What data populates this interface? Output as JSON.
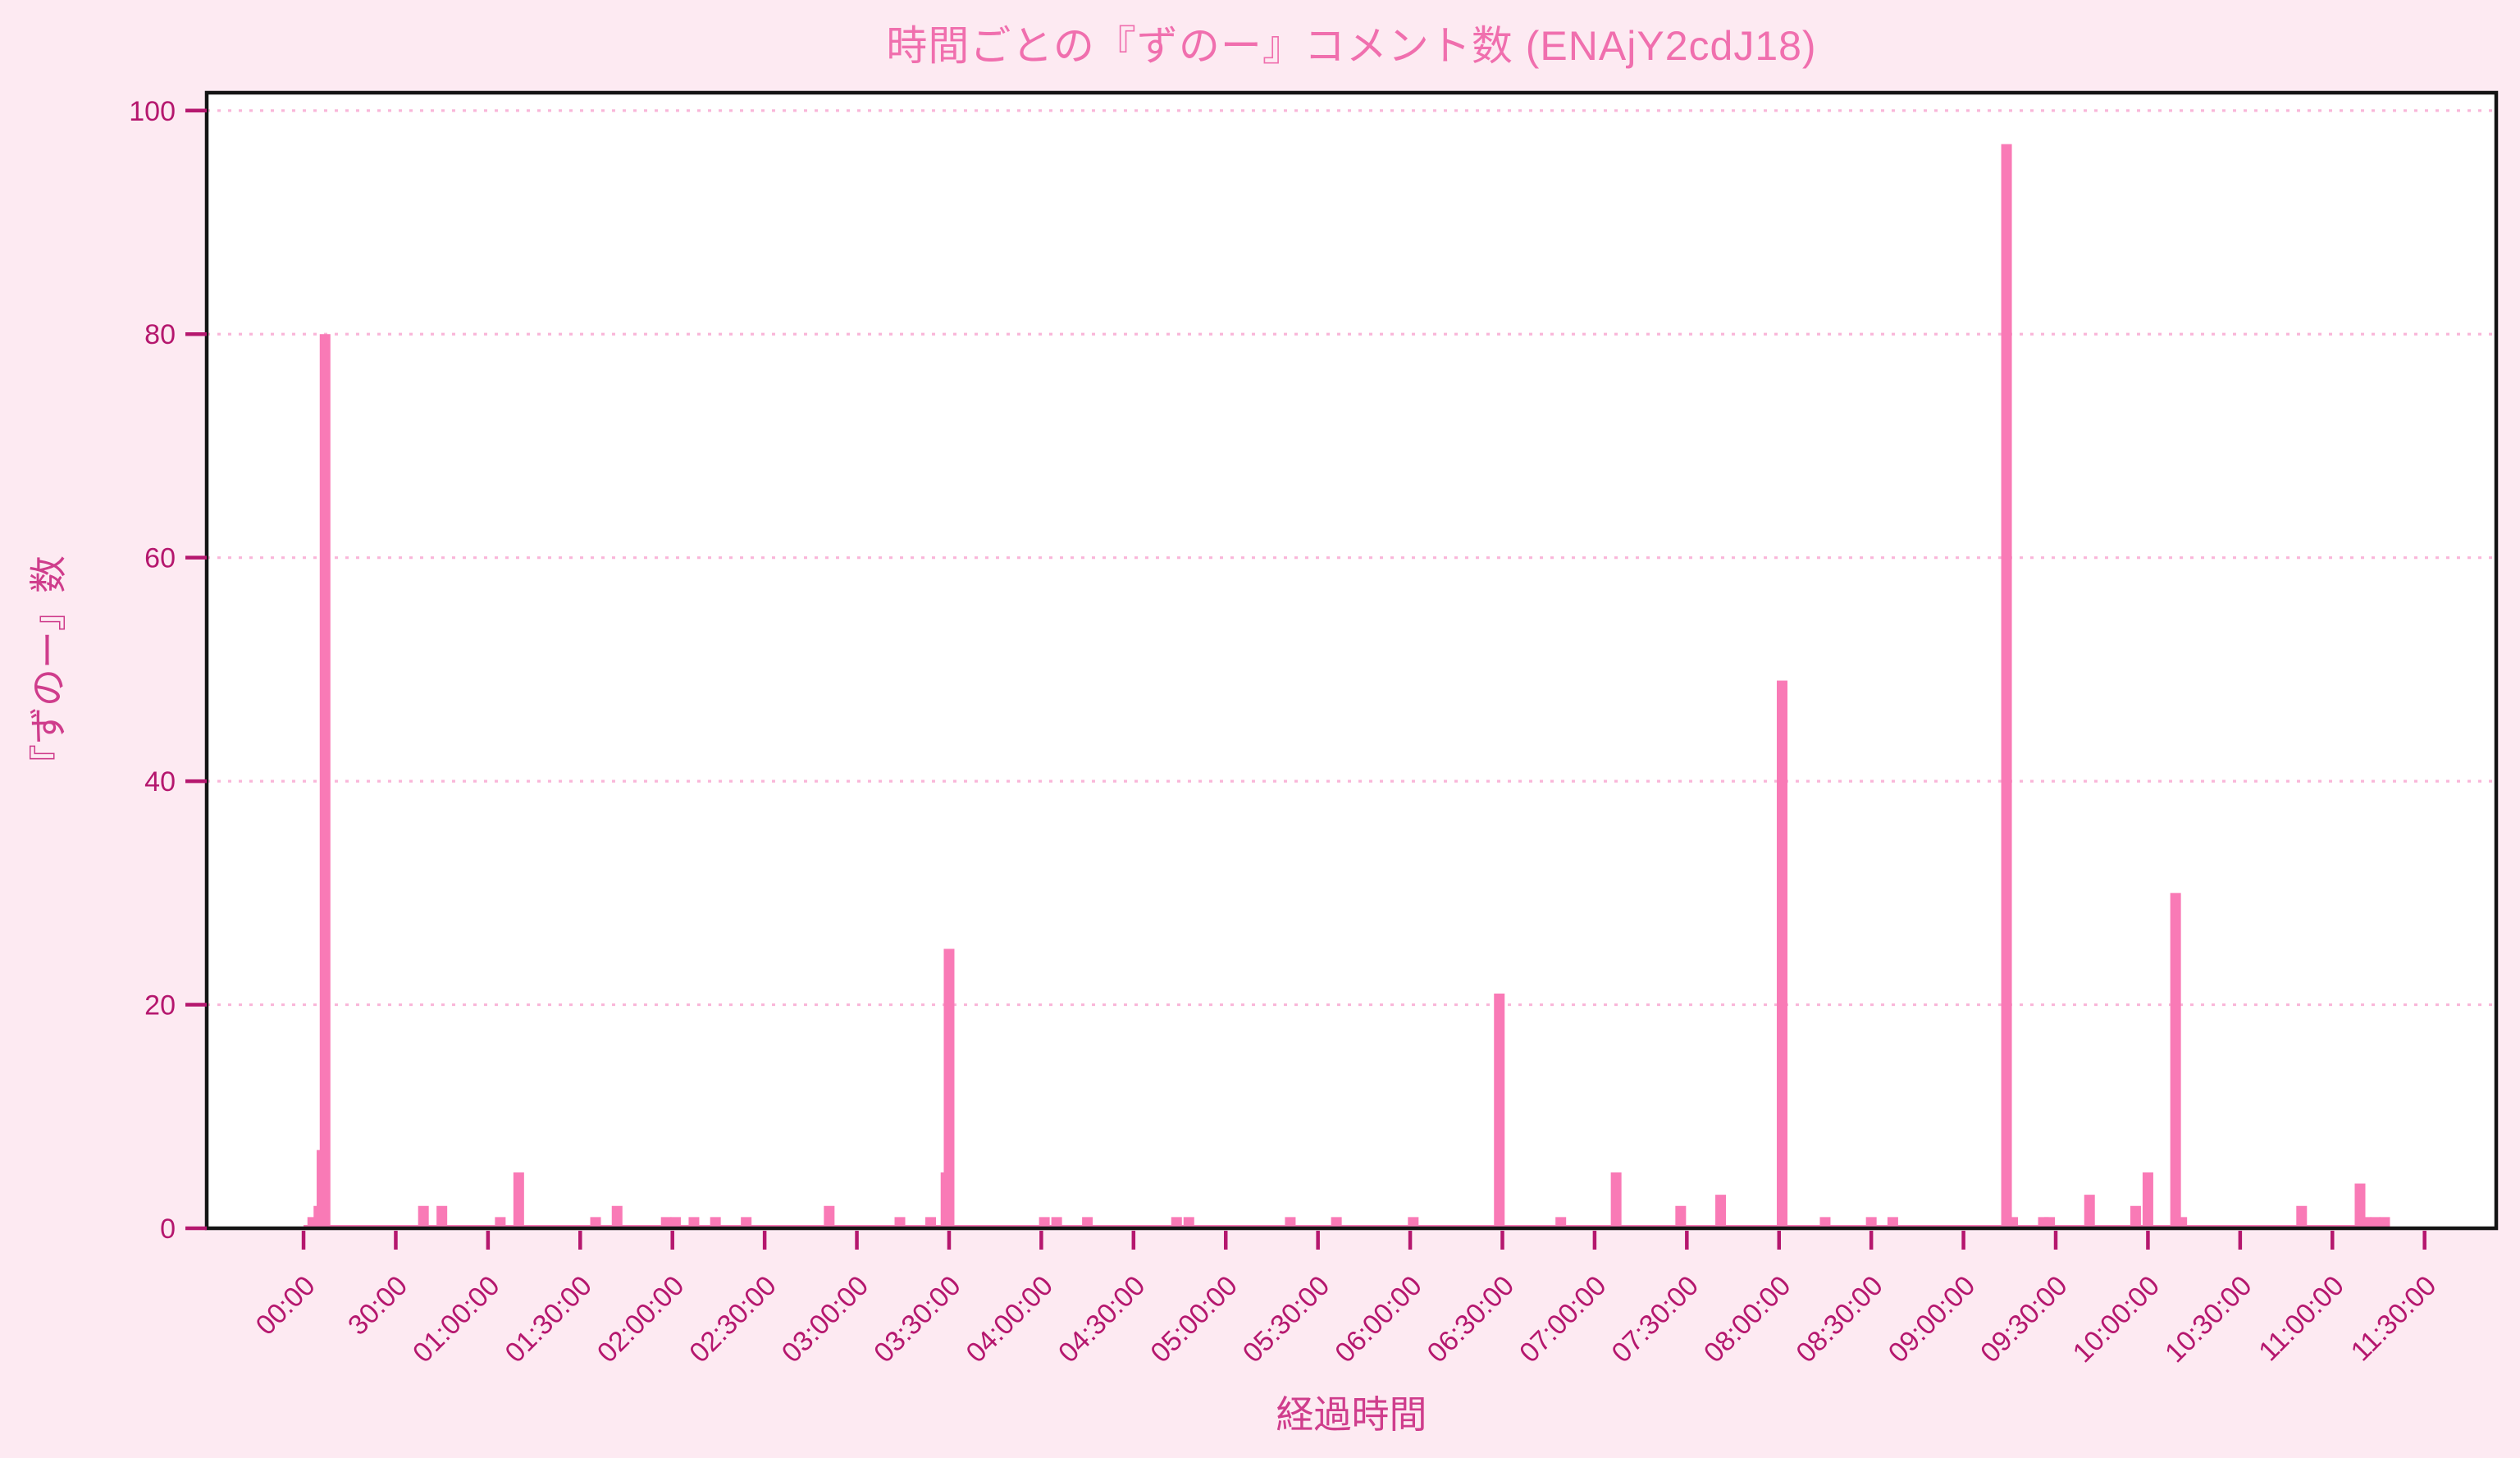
{
  "chart_data": {
    "type": "bar",
    "title": "時間ごとの『ずのー』コメント数 (ENAjY2cdJ18)",
    "xlabel": "経過時間",
    "ylabel": "『ずのー』数",
    "grid": "horizontal-dotted",
    "legend": "none",
    "x_unit": "minutes-elapsed",
    "xlim_minutes": [
      -31.5,
      713.3
    ],
    "ylim": [
      0,
      101.6
    ],
    "y_ticks": [
      0,
      20,
      40,
      60,
      80,
      100
    ],
    "x_ticks": [
      {
        "minute": 0,
        "label": "00:00"
      },
      {
        "minute": 30,
        "label": "30:00"
      },
      {
        "minute": 60,
        "label": "01:00:00"
      },
      {
        "minute": 90,
        "label": "01:30:00"
      },
      {
        "minute": 120,
        "label": "02:00:00"
      },
      {
        "minute": 150,
        "label": "02:30:00"
      },
      {
        "minute": 180,
        "label": "03:00:00"
      },
      {
        "minute": 210,
        "label": "03:30:00"
      },
      {
        "minute": 240,
        "label": "04:00:00"
      },
      {
        "minute": 270,
        "label": "04:30:00"
      },
      {
        "minute": 300,
        "label": "05:00:00"
      },
      {
        "minute": 330,
        "label": "05:30:00"
      },
      {
        "minute": 360,
        "label": "06:00:00"
      },
      {
        "minute": 390,
        "label": "06:30:00"
      },
      {
        "minute": 420,
        "label": "07:00:00"
      },
      {
        "minute": 450,
        "label": "07:30:00"
      },
      {
        "minute": 480,
        "label": "08:00:00"
      },
      {
        "minute": 510,
        "label": "08:30:00"
      },
      {
        "minute": 540,
        "label": "09:00:00"
      },
      {
        "minute": 570,
        "label": "09:30:00"
      },
      {
        "minute": 600,
        "label": "10:00:00"
      },
      {
        "minute": 630,
        "label": "10:30:00"
      },
      {
        "minute": 660,
        "label": "11:00:00"
      },
      {
        "minute": 690,
        "label": "11:30:00"
      }
    ],
    "points_minute_value": [
      [
        3,
        1
      ],
      [
        5,
        2
      ],
      [
        6,
        7
      ],
      [
        7,
        80
      ],
      [
        39,
        2
      ],
      [
        45,
        2
      ],
      [
        64,
        1
      ],
      [
        70,
        5
      ],
      [
        95,
        1
      ],
      [
        102,
        2
      ],
      [
        118,
        1
      ],
      [
        121,
        1
      ],
      [
        127,
        1
      ],
      [
        134,
        1
      ],
      [
        144,
        1
      ],
      [
        171,
        2
      ],
      [
        194,
        1
      ],
      [
        204,
        1
      ],
      [
        209,
        5
      ],
      [
        210,
        25
      ],
      [
        241,
        1
      ],
      [
        245,
        1
      ],
      [
        255,
        1
      ],
      [
        284,
        1
      ],
      [
        288,
        1
      ],
      [
        321,
        1
      ],
      [
        336,
        1
      ],
      [
        361,
        1
      ],
      [
        389,
        21
      ],
      [
        409,
        1
      ],
      [
        427,
        5
      ],
      [
        448,
        2
      ],
      [
        461,
        3
      ],
      [
        481,
        49
      ],
      [
        495,
        1
      ],
      [
        510,
        1
      ],
      [
        517,
        1
      ],
      [
        554,
        97
      ],
      [
        556,
        1
      ],
      [
        566,
        1
      ],
      [
        568,
        1
      ],
      [
        581,
        3
      ],
      [
        596,
        2
      ],
      [
        600,
        5
      ],
      [
        609,
        30
      ],
      [
        611,
        1
      ],
      [
        650,
        2
      ],
      [
        669,
        4
      ],
      [
        671,
        1
      ],
      [
        674,
        1
      ],
      [
        677,
        1
      ]
    ],
    "zero_baseline_minutes": [
      0,
      678
    ],
    "colors": {
      "figure_background": "#fdeaf2",
      "plot_background": "#ffffff",
      "bar": "#f97ab6",
      "title": "#f06fae",
      "axis_label": "#cf3d8c",
      "tick": "#b5176e",
      "grid": "#f9b6d9",
      "spine": "#141414"
    }
  }
}
